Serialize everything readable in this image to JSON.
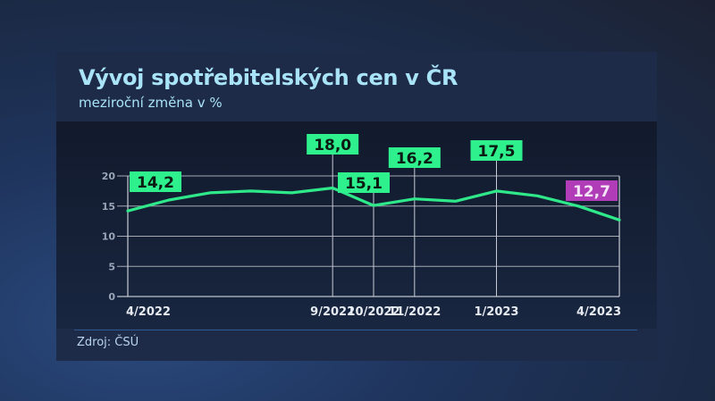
{
  "header": {
    "title": "Vývoj spotřebitelských cen v ČR",
    "subtitle": "meziroční změna v %"
  },
  "footer": {
    "source": "Zdroj: ČSÚ"
  },
  "colors": {
    "line": "#2ee88a",
    "label_bg": "#2ef08c",
    "label_highlight_bg": "#b03cb8",
    "title": "#a9e3f7",
    "grid": "#c8ccd4"
  },
  "chart_data": {
    "type": "line",
    "title": "Vývoj spotřebitelských cen v ČR",
    "subtitle": "meziroční změna v %",
    "xlabel": "",
    "ylabel": "meziroční změna v %",
    "ylim": [
      0,
      20
    ],
    "yticks": [
      0,
      5,
      10,
      15,
      20
    ],
    "grid": true,
    "legend": "none",
    "x": [
      "4/2022",
      "5/2022",
      "6/2022",
      "7/2022",
      "8/2022",
      "9/2022",
      "10/2022",
      "11/2022",
      "12/2022",
      "1/2023",
      "2/2023",
      "3/2023",
      "4/2023"
    ],
    "x_tick_labels": [
      "4/2022",
      "9/2022",
      "10/2022",
      "11/2022",
      "1/2023",
      "4/2023"
    ],
    "series": [
      {
        "name": "meziroční změna v %",
        "values": [
          14.2,
          16.0,
          17.2,
          17.5,
          17.2,
          18.0,
          15.1,
          16.2,
          15.8,
          17.5,
          16.7,
          15.0,
          12.7
        ]
      }
    ],
    "annotations": [
      {
        "x": "4/2022",
        "label": "14,2",
        "value": 14.2
      },
      {
        "x": "9/2022",
        "label": "18,0",
        "value": 18.0
      },
      {
        "x": "10/2022",
        "label": "15,1",
        "value": 15.1
      },
      {
        "x": "11/2022",
        "label": "16,2",
        "value": 16.2
      },
      {
        "x": "1/2023",
        "label": "17,5",
        "value": 17.5
      },
      {
        "x": "4/2023",
        "label": "12,7",
        "value": 12.7,
        "highlight": true
      }
    ]
  }
}
